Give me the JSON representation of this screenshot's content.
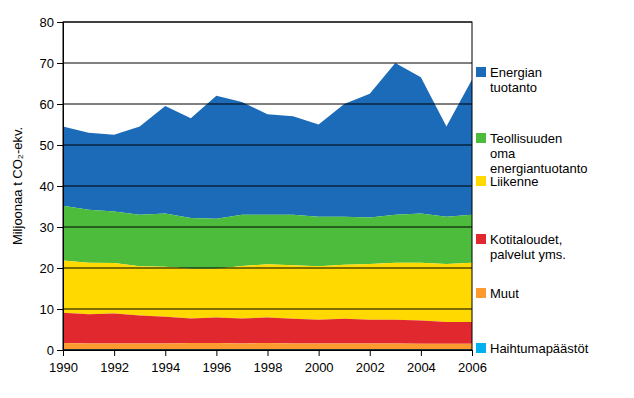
{
  "chart_data": {
    "type": "stacked_area",
    "stacked": true,
    "grid": true,
    "legend": "right",
    "y_label": "Miljoonaa t CO₂-ekv.",
    "x": [
      1990,
      1991,
      1992,
      1993,
      1994,
      1995,
      1996,
      1997,
      1998,
      1999,
      2000,
      2001,
      2002,
      2003,
      2004,
      2005,
      2006
    ],
    "xlim": [
      1990,
      2006
    ],
    "xticks": [
      1990,
      1992,
      1994,
      1996,
      1998,
      2000,
      2002,
      2004,
      2006
    ],
    "ylim": [
      0,
      80
    ],
    "yticks": [
      0,
      10,
      20,
      30,
      40,
      50,
      60,
      70,
      80
    ],
    "series": [
      {
        "name": "Energian\ntuotanto",
        "color": "#1b6bb8",
        "values": [
          19.3,
          18.8,
          18.7,
          21.5,
          26.2,
          24.3,
          30.0,
          27.5,
          24.5,
          24.0,
          22.5,
          27.5,
          30.2,
          37.0,
          33.2,
          22.0,
          33.0
        ]
      },
      {
        "name": "Teollisuuden\noma\nenergiantuotanto",
        "color": "#4dbb3c",
        "values": [
          13.4,
          12.9,
          12.6,
          12.6,
          13.0,
          12.4,
          12.2,
          12.5,
          12.1,
          12.3,
          12.1,
          11.7,
          11.3,
          11.7,
          12.0,
          11.5,
          11.7
        ]
      },
      {
        "name": "Liikenne",
        "color": "#ffd900",
        "values": [
          12.7,
          12.6,
          12.3,
          12.0,
          12.2,
          12.1,
          11.9,
          12.8,
          13.0,
          13.1,
          13.0,
          13.2,
          13.6,
          13.9,
          14.1,
          14.2,
          14.5
        ]
      },
      {
        "name": "Kotitaloudet,\npalvelut yms.",
        "color": "#e0282e",
        "values": [
          7.4,
          7.1,
          7.3,
          6.8,
          6.5,
          6.0,
          6.2,
          6.1,
          6.2,
          6.0,
          5.8,
          6.0,
          5.8,
          5.8,
          5.7,
          5.3,
          5.3
        ]
      },
      {
        "name": "Muut",
        "color": "#ff9a2e",
        "values": [
          1.6,
          1.5,
          1.5,
          1.5,
          1.5,
          1.6,
          1.6,
          1.5,
          1.6,
          1.5,
          1.5,
          1.5,
          1.5,
          1.5,
          1.4,
          1.4,
          1.4
        ]
      },
      {
        "name": "Haihtumapäästöt",
        "color": "#00b0f0",
        "values": [
          0.1,
          0.1,
          0.1,
          0.1,
          0.1,
          0.1,
          0.1,
          0.1,
          0.1,
          0.1,
          0.1,
          0.1,
          0.1,
          0.1,
          0.1,
          0.1,
          0.1
        ]
      }
    ]
  }
}
